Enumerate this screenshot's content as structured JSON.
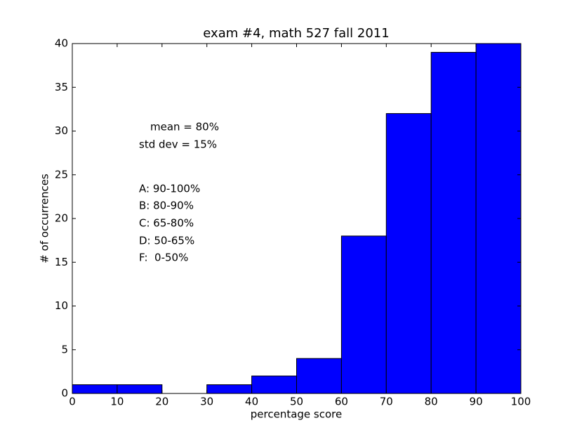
{
  "chart_data": {
    "type": "histogram",
    "title": "exam #4, math 527 fall 2011",
    "xlabel": "percentage score",
    "ylabel": "# of occurrences",
    "bins": [
      0,
      10,
      20,
      30,
      40,
      50,
      60,
      70,
      80,
      90,
      100
    ],
    "values": [
      1,
      1,
      0,
      1,
      2,
      4,
      18,
      32,
      39,
      40
    ],
    "color": "#0000ff",
    "xlim": [
      0,
      100
    ],
    "xticks": [
      0,
      10,
      20,
      30,
      40,
      50,
      60,
      70,
      80,
      90,
      100
    ],
    "ylim": [
      0,
      40
    ],
    "yticks": [
      0,
      5,
      10,
      15,
      20,
      25,
      30,
      35,
      40
    ],
    "annotations": [
      "mean = 80%",
      "std dev = 15%",
      "A: 90-100%",
      "B: 80-90%",
      "C: 65-80%",
      "D: 50-65%",
      "F:  0-50%"
    ]
  }
}
